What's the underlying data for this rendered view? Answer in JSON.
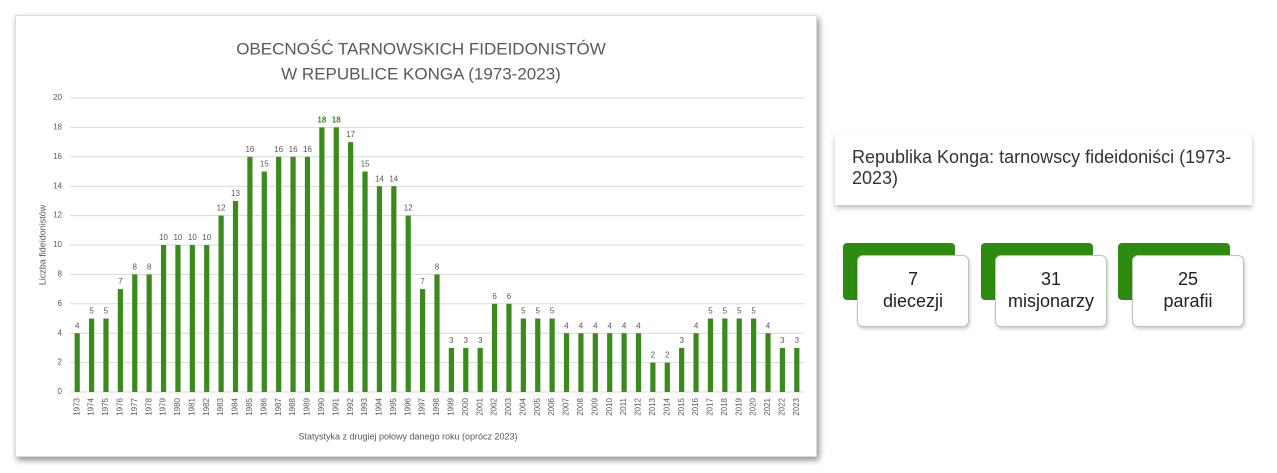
{
  "chart_data": {
    "type": "bar",
    "title": [
      "OBECNOŚĆ TARNOWSKICH FIDEIDONISTÓW",
      "W REPUBLICE KONGA (1973-2023)"
    ],
    "y_label": "Liczba fideidonistów",
    "x_label": "Statystyka z drugiej połowy danego roku (oprócz 2023)",
    "categories": [
      "1973",
      "1974",
      "1975",
      "1976",
      "1977",
      "1978",
      "1979",
      "1980",
      "1981",
      "1982",
      "1983",
      "1984",
      "1985",
      "1986",
      "1987",
      "1988",
      "1989",
      "1990",
      "1991",
      "1992",
      "1993",
      "1994",
      "1995",
      "1996",
      "1997",
      "1998",
      "1999",
      "2000",
      "2001",
      "2002",
      "2003",
      "2004",
      "2005",
      "2006",
      "2007",
      "2008",
      "2009",
      "2010",
      "2011",
      "2012",
      "2013",
      "2014",
      "2015",
      "2016",
      "2017",
      "2018",
      "2019",
      "2020",
      "2021",
      "2022",
      "2023"
    ],
    "values": [
      4,
      5,
      5,
      7,
      8,
      8,
      10,
      10,
      10,
      10,
      12,
      13,
      16,
      15,
      16,
      16,
      16,
      18,
      18,
      17,
      15,
      14,
      14,
      12,
      7,
      8,
      3,
      3,
      3,
      6,
      6,
      5,
      5,
      5,
      4,
      4,
      4,
      4,
      4,
      4,
      2,
      2,
      3,
      4,
      5,
      5,
      5,
      5,
      4,
      3,
      3
    ],
    "color": "#3a8a1c",
    "ylim": [
      0,
      20
    ],
    "yticks": [
      0,
      2,
      4,
      6,
      8,
      10,
      12,
      14,
      16,
      18,
      20
    ],
    "grid": true
  },
  "summary": {
    "title": "Republika Konga: tarnowscy fideidoniści (1973-2023)",
    "stats": [
      {
        "value": "7",
        "label": "diecezji"
      },
      {
        "value": "31",
        "label": "misjonarzy"
      },
      {
        "value": "25",
        "label": "parafii"
      }
    ]
  }
}
